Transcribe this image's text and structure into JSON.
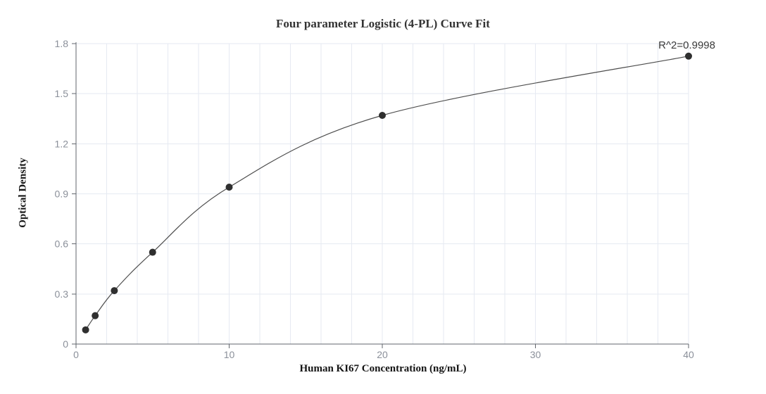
{
  "chart_data": {
    "type": "scatter",
    "title": "Four parameter Logistic (4-PL) Curve Fit",
    "xlabel": "Human KI67 Concentration (ng/mL)",
    "ylabel": "Optical Density",
    "annotation": "R^2=0.9998",
    "x": [
      0.625,
      1.25,
      2.5,
      5,
      10,
      20,
      40
    ],
    "y": [
      0.085,
      0.17,
      0.32,
      0.55,
      0.94,
      1.37,
      1.725
    ],
    "xlim": [
      0,
      40
    ],
    "ylim": [
      0,
      1.8
    ],
    "x_major_ticks": [
      0,
      10,
      20,
      30,
      40
    ],
    "x_tick_labels": [
      "0",
      "10",
      "20",
      "30",
      "40"
    ],
    "x_minor_grid_step": 2,
    "y_ticks": [
      0,
      0.3,
      0.6,
      0.9,
      1.2,
      1.5,
      1.8
    ],
    "y_tick_labels": [
      "0",
      "0.3",
      "0.6",
      "0.9",
      "1.2",
      "1.5",
      "1.8"
    ],
    "grid": true,
    "legend": "none",
    "curve": "4PL fit line through points",
    "colors": {
      "point": "#2f2f2f",
      "line": "#4d4d4d",
      "grid": "#e6eaf2",
      "axis": "#61656c",
      "tick": "#61656c",
      "tick_label": "#8b909a",
      "title": "#333333",
      "annotation": "#3a3a3a",
      "background": "#ffffff"
    }
  }
}
